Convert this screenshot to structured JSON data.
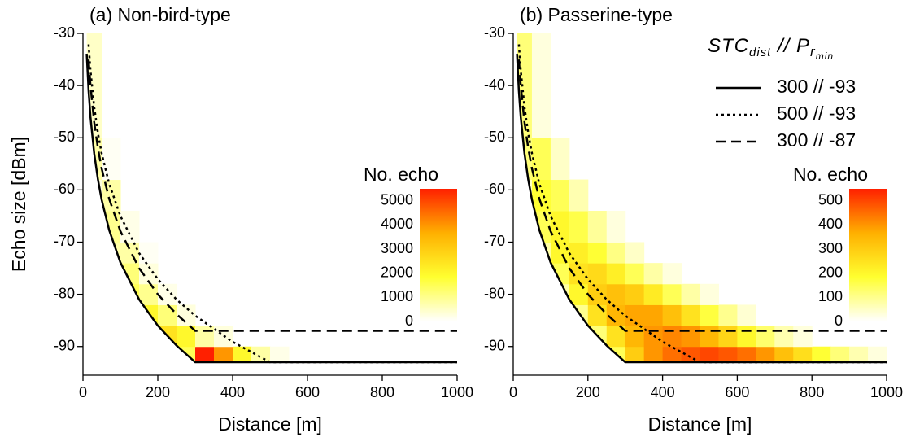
{
  "chart_data": [
    {
      "type": "heatmap",
      "title": "(a) Non-bird-type",
      "x_label": "Distance [m]",
      "y_label": "Echo size [dBm]",
      "xlim": [
        0,
        1000
      ],
      "xticks": [
        0,
        200,
        400,
        600,
        800,
        1000
      ],
      "ylim": [
        -95.5,
        -30
      ],
      "yticks": [
        -90,
        -80,
        -70,
        -60,
        -50,
        -40,
        -30
      ],
      "xbins": [
        0,
        50,
        100,
        150,
        200,
        250,
        300,
        350,
        400,
        450,
        500,
        550,
        600,
        650,
        700,
        750,
        800,
        850,
        900,
        950,
        1000
      ],
      "ybins": [
        -94,
        -90,
        -86,
        -82,
        -78,
        -74,
        -70,
        -64,
        -58,
        -50,
        -30
      ],
      "counts": [
        [
          0,
          0,
          0,
          0,
          0,
          1500,
          5500,
          4000,
          2000,
          800,
          200,
          0,
          0,
          0,
          0,
          0,
          0,
          0,
          0,
          0
        ],
        [
          0,
          0,
          0,
          0,
          2500,
          2000,
          800,
          300,
          0,
          0,
          0,
          0,
          0,
          0,
          0,
          0,
          0,
          0,
          0,
          0
        ],
        [
          0,
          0,
          0,
          2000,
          1200,
          300,
          0,
          0,
          0,
          0,
          0,
          0,
          0,
          0,
          0,
          0,
          0,
          0,
          0,
          0
        ],
        [
          0,
          0,
          1500,
          1000,
          200,
          0,
          0,
          0,
          0,
          0,
          0,
          0,
          0,
          0,
          0,
          0,
          0,
          0,
          0,
          0
        ],
        [
          0,
          0,
          1200,
          300,
          0,
          0,
          0,
          0,
          0,
          0,
          0,
          0,
          0,
          0,
          0,
          0,
          0,
          0,
          0,
          0
        ],
        [
          0,
          800,
          800,
          100,
          0,
          0,
          0,
          0,
          0,
          0,
          0,
          0,
          0,
          0,
          0,
          0,
          0,
          0,
          0,
          0
        ],
        [
          0,
          1000,
          200,
          0,
          0,
          0,
          0,
          0,
          0,
          0,
          0,
          0,
          0,
          0,
          0,
          0,
          0,
          0,
          0,
          0
        ],
        [
          300,
          800,
          0,
          0,
          0,
          0,
          0,
          0,
          0,
          0,
          0,
          0,
          0,
          0,
          0,
          0,
          0,
          0,
          0,
          0
        ],
        [
          800,
          100,
          0,
          0,
          0,
          0,
          0,
          0,
          0,
          0,
          0,
          0,
          0,
          0,
          0,
          0,
          0,
          0,
          0,
          0
        ],
        [
          500,
          0,
          0,
          0,
          0,
          0,
          0,
          0,
          0,
          0,
          0,
          0,
          0,
          0,
          0,
          0,
          0,
          0,
          0,
          0
        ]
      ],
      "colormap": [
        "#ffffff",
        "#ffff30",
        "#ffb000",
        "#ff2000"
      ],
      "colorbar_title": "No. echo",
      "clim": [
        0,
        5500
      ],
      "cticks": [
        0,
        1000,
        2000,
        3000,
        4000,
        5000
      ],
      "x": [
        10,
        15,
        20,
        30,
        40,
        50,
        70,
        100,
        150,
        200,
        250,
        300,
        400,
        500,
        600,
        800,
        1000
      ],
      "series": [
        {
          "color": "#000000",
          "dash": "solid",
          "values": [
            -33.9,
            -41.0,
            -46.0,
            -53.0,
            -58.0,
            -61.9,
            -67.7,
            -73.9,
            -81.0,
            -86.0,
            -89.8,
            -93,
            -93,
            -93,
            -93,
            -93,
            -93
          ]
        },
        {
          "color": "#000000",
          "dash": "dotted",
          "values": [
            null,
            -32.1,
            -37.1,
            -44.1,
            -49.1,
            -53,
            -58.8,
            -65.0,
            -72.1,
            -77.1,
            -81.0,
            -84.1,
            -89.1,
            -93,
            -93,
            -93,
            -93
          ]
        },
        {
          "color": "#000000",
          "dash": "dashed",
          "values": [
            null,
            -35.0,
            -40.0,
            -47.0,
            -52.0,
            -55.9,
            -61.7,
            -67.9,
            -75.0,
            -80.0,
            -83.8,
            -87,
            -87,
            -87,
            -87,
            -87,
            -87
          ]
        }
      ]
    },
    {
      "type": "heatmap",
      "title": "(b) Passerine-type",
      "x_label": "Distance [m]",
      "xlim": [
        0,
        1000
      ],
      "xticks": [
        0,
        200,
        400,
        600,
        800,
        1000
      ],
      "ylim": [
        -95.5,
        -30
      ],
      "yticks": [
        -90,
        -80,
        -70,
        -60,
        -50,
        -40,
        -30
      ],
      "xbins": [
        0,
        50,
        100,
        150,
        200,
        250,
        300,
        350,
        400,
        450,
        500,
        550,
        600,
        650,
        700,
        750,
        800,
        850,
        900,
        950,
        1000
      ],
      "ybins": [
        -94,
        -90,
        -86,
        -82,
        -78,
        -74,
        -70,
        -64,
        -58,
        -50,
        -30
      ],
      "counts": [
        [
          0,
          0,
          0,
          0,
          0,
          150,
          300,
          400,
          450,
          480,
          500,
          480,
          450,
          400,
          330,
          260,
          180,
          120,
          70,
          30
        ],
        [
          0,
          0,
          0,
          0,
          120,
          250,
          350,
          400,
          420,
          400,
          350,
          280,
          200,
          130,
          70,
          30,
          0,
          0,
          0,
          0
        ],
        [
          0,
          0,
          0,
          100,
          250,
          350,
          380,
          380,
          330,
          250,
          170,
          100,
          40,
          0,
          0,
          0,
          0,
          0,
          0,
          0
        ],
        [
          0,
          0,
          80,
          200,
          300,
          330,
          300,
          230,
          150,
          80,
          30,
          0,
          0,
          0,
          0,
          0,
          0,
          0,
          0,
          0
        ],
        [
          0,
          0,
          150,
          250,
          270,
          220,
          150,
          80,
          30,
          0,
          0,
          0,
          0,
          0,
          0,
          0,
          0,
          0,
          0,
          0
        ],
        [
          0,
          80,
          200,
          220,
          180,
          110,
          50,
          0,
          0,
          0,
          0,
          0,
          0,
          0,
          0,
          0,
          0,
          0,
          0,
          0
        ],
        [
          0,
          150,
          200,
          160,
          90,
          30,
          0,
          0,
          0,
          0,
          0,
          0,
          0,
          0,
          0,
          0,
          0,
          0,
          0,
          0
        ],
        [
          50,
          180,
          150,
          70,
          0,
          0,
          0,
          0,
          0,
          0,
          0,
          0,
          0,
          0,
          0,
          0,
          0,
          0,
          0,
          0
        ],
        [
          120,
          150,
          50,
          0,
          0,
          0,
          0,
          0,
          0,
          0,
          0,
          0,
          0,
          0,
          0,
          0,
          0,
          0,
          0,
          0
        ],
        [
          120,
          30,
          0,
          0,
          0,
          0,
          0,
          0,
          0,
          0,
          0,
          0,
          0,
          0,
          0,
          0,
          0,
          0,
          0,
          0
        ]
      ],
      "colormap": [
        "#ffffff",
        "#ffff30",
        "#ffb000",
        "#ff2000"
      ],
      "colorbar_title": "No. echo",
      "clim": [
        0,
        550
      ],
      "cticks": [
        0,
        100,
        200,
        300,
        400,
        500
      ],
      "legend": "upper right",
      "legend_title": [
        "STC",
        "dist",
        " // P",
        "r",
        "min"
      ],
      "x": [
        10,
        15,
        20,
        30,
        40,
        50,
        70,
        100,
        150,
        200,
        250,
        300,
        400,
        500,
        600,
        800,
        1000
      ],
      "series": [
        {
          "name": "300 // -93",
          "color": "#000000",
          "dash": "solid",
          "values": [
            -33.9,
            -41.0,
            -46.0,
            -53.0,
            -58.0,
            -61.9,
            -67.7,
            -73.9,
            -81.0,
            -86.0,
            -89.8,
            -93,
            -93,
            -93,
            -93,
            -93,
            -93
          ]
        },
        {
          "name": "500 // -93",
          "color": "#000000",
          "dash": "dotted",
          "values": [
            null,
            -32.1,
            -37.1,
            -44.1,
            -49.1,
            -53,
            -58.8,
            -65.0,
            -72.1,
            -77.1,
            -81.0,
            -84.1,
            -89.1,
            -93,
            -93,
            -93,
            -93
          ]
        },
        {
          "name": "300 // -87",
          "color": "#000000",
          "dash": "dashed",
          "values": [
            null,
            -35.0,
            -40.0,
            -47.0,
            -52.0,
            -55.9,
            -61.7,
            -67.9,
            -75.0,
            -80.0,
            -83.8,
            -87,
            -87,
            -87,
            -87,
            -87,
            -87
          ]
        }
      ]
    }
  ]
}
